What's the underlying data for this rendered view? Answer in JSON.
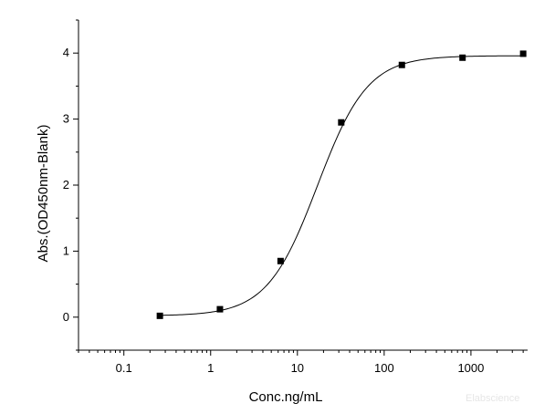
{
  "chart_data": {
    "type": "scatter",
    "title": "",
    "xlabel": "Conc.ng/mL",
    "ylabel": "Abs.(OD450nm-Blank)",
    "x_scale": "log",
    "xlim": [
      0.03,
      4500
    ],
    "ylim": [
      -0.5,
      4.5
    ],
    "x_ticks": [
      0.1,
      1,
      10,
      100,
      1000
    ],
    "x_tick_labels": [
      "0.1",
      "1",
      "10",
      "100",
      "1000"
    ],
    "y_ticks": [
      0,
      1,
      2,
      3,
      4
    ],
    "y_tick_labels": [
      "0",
      "1",
      "2",
      "3",
      "4"
    ],
    "grid": false,
    "series": [
      {
        "name": "",
        "marker": "square",
        "color": "#000000",
        "x": [
          0.26,
          1.28,
          6.4,
          32,
          160,
          800,
          4000
        ],
        "y": [
          0.02,
          0.12,
          0.85,
          2.95,
          3.82,
          3.93,
          3.99
        ]
      }
    ],
    "fit_curve": {
      "type": "4PL",
      "color": "#000000",
      "bottom": 0.02,
      "top": 3.96,
      "ec50": 17,
      "hill": 1.5
    },
    "watermark": "Elabscience"
  }
}
